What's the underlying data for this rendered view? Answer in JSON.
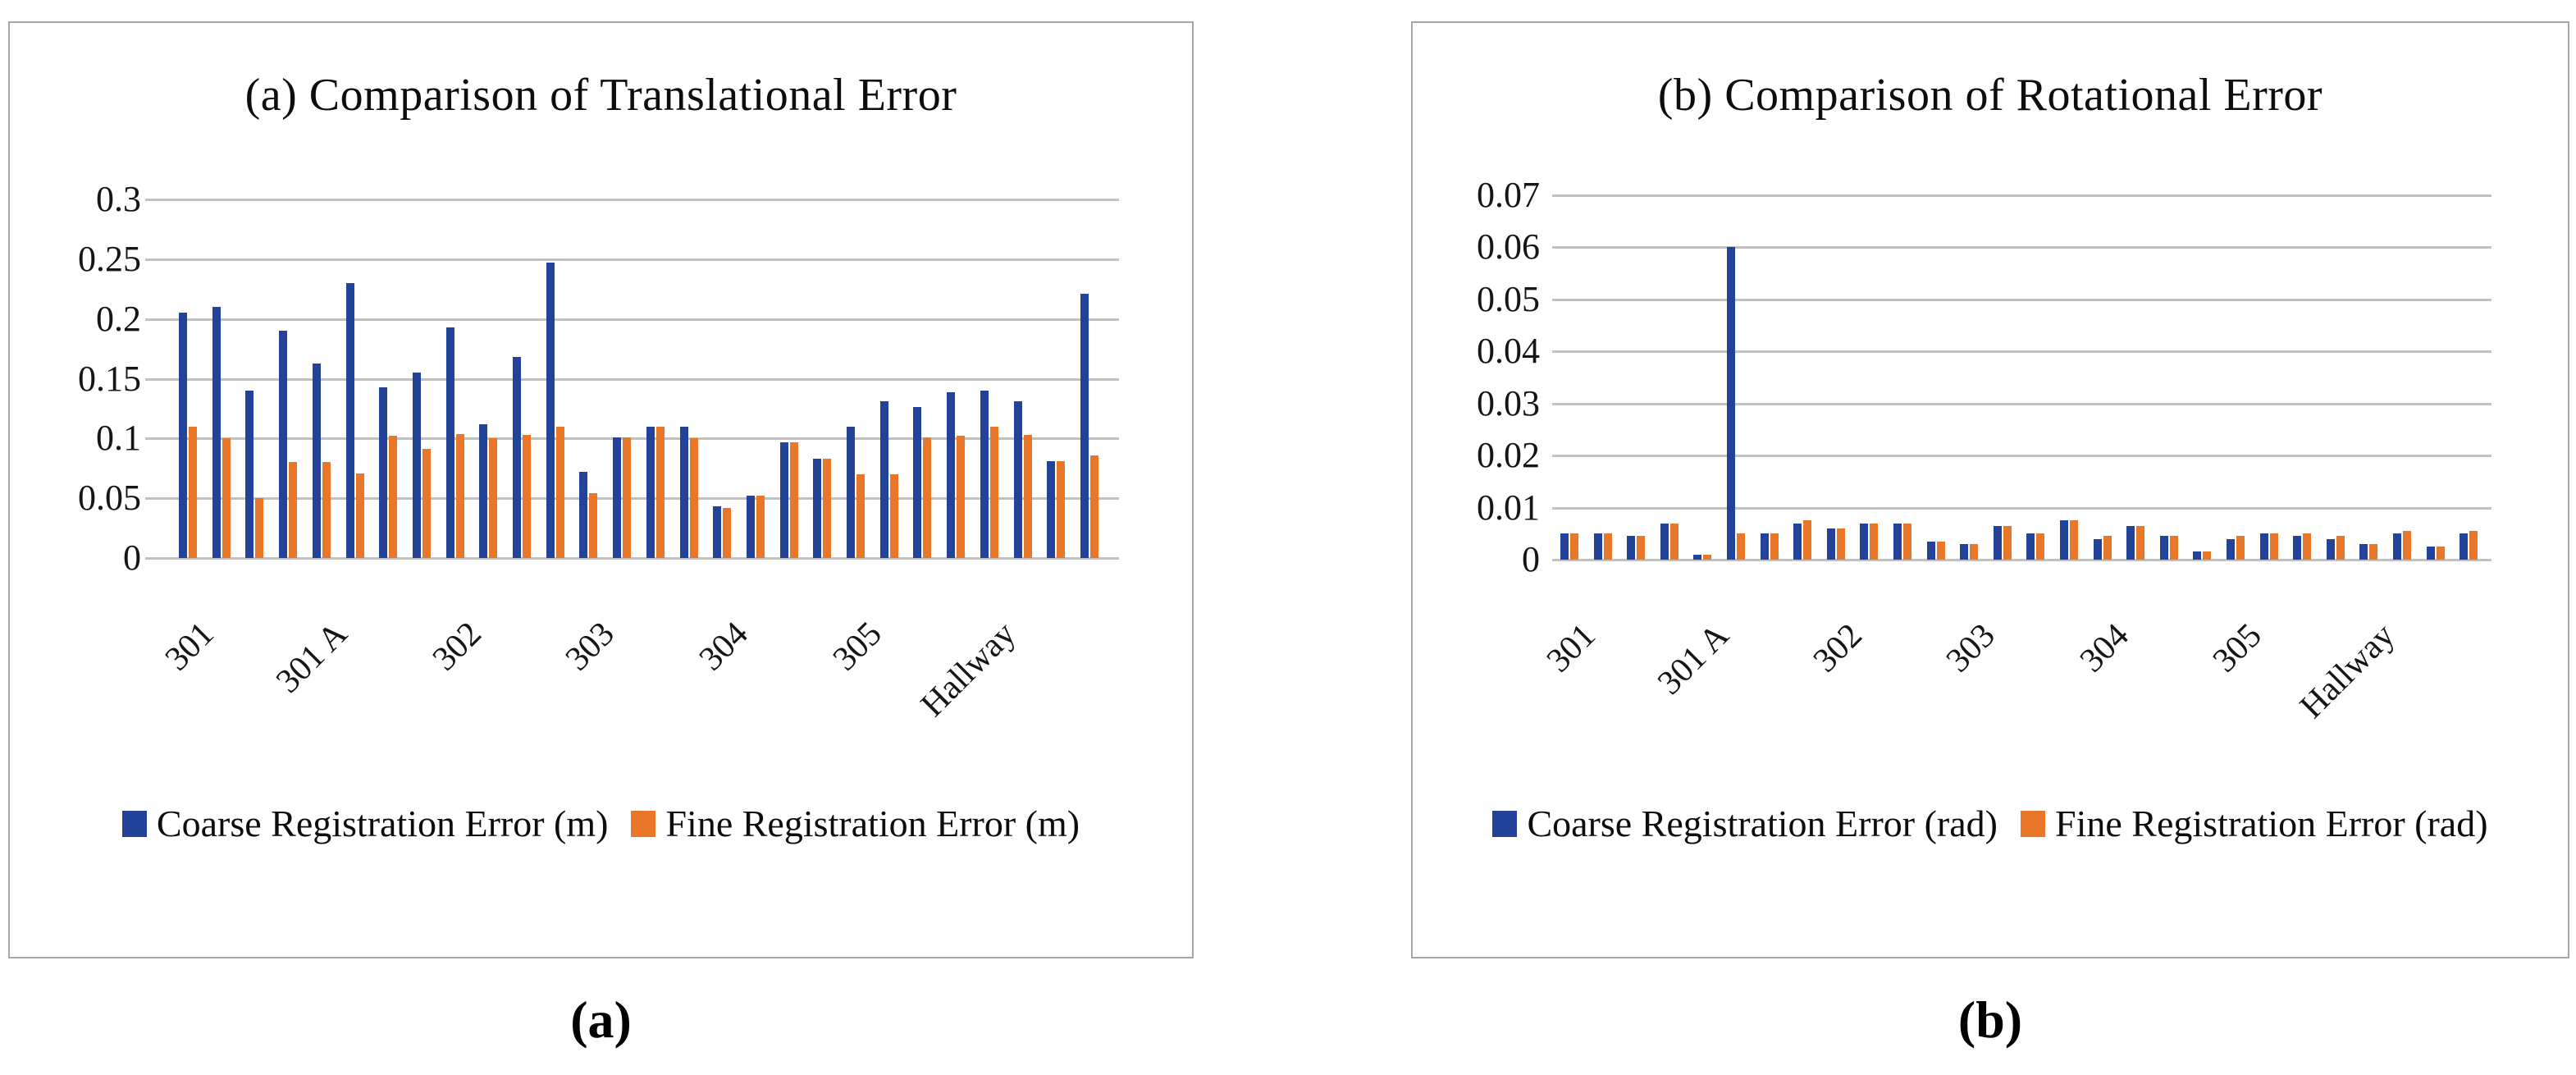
{
  "figure": {
    "captions": [
      "(a)",
      "(b)"
    ]
  },
  "colors": {
    "coarse_blue": "#23439B",
    "fine_orange": "#E8772A",
    "gridline": "#C1C1C1",
    "panel_border": "#A6A6A6",
    "text": "#111111"
  },
  "chart_data": [
    {
      "type": "bar",
      "title": "(a) Comparison of Translational Error",
      "categories": [
        "301",
        "301 A",
        "302",
        "303",
        "304",
        "305",
        "Hallway"
      ],
      "points_per_category": 4,
      "grid": true,
      "legend_position": "bottom",
      "y_axis": {
        "min": 0,
        "max": 0.3,
        "step": 0.05,
        "tick_labels_top_to_bottom": [
          "0.3",
          "0.25",
          "0.2",
          "0.15",
          "0.1",
          "0.05",
          "0"
        ]
      },
      "series": [
        {
          "name": "Coarse Registration Error (m)",
          "color": "#23439B",
          "values": [
            0.205,
            0.21,
            0.14,
            0.19,
            0.163,
            0.23,
            0.143,
            0.155,
            0.193,
            0.112,
            0.168,
            0.247,
            0.072,
            0.101,
            0.11,
            0.11,
            0.043,
            0.052,
            0.097,
            0.083,
            0.11,
            0.131,
            0.126,
            0.139,
            0.14,
            0.131,
            0.081,
            0.221
          ]
        },
        {
          "name": "Fine Registration Error (m)",
          "color": "#E8772A",
          "values": [
            0.11,
            0.1,
            0.05,
            0.08,
            0.08,
            0.071,
            0.102,
            0.091,
            0.104,
            0.1,
            0.103,
            0.11,
            0.054,
            0.101,
            0.11,
            0.1,
            0.042,
            0.052,
            0.097,
            0.083,
            0.07,
            0.07,
            0.101,
            0.102,
            0.11,
            0.103,
            0.081,
            0.086
          ]
        }
      ]
    },
    {
      "type": "bar",
      "title": "(b) Comparison of Rotational Error",
      "categories": [
        "301",
        "301 A",
        "302",
        "303",
        "304",
        "305",
        "Hallway"
      ],
      "points_per_category": 4,
      "grid": true,
      "legend_position": "bottom",
      "y_axis": {
        "min": 0,
        "max": 0.07,
        "step": 0.01,
        "tick_labels_top_to_bottom": [
          "0.07",
          "0.06",
          "0.05",
          "0.04",
          "0.03",
          "0.02",
          "0.01",
          "0"
        ]
      },
      "series": [
        {
          "name": "Coarse Registration Error (rad)",
          "color": "#23439B",
          "values": [
            0.005,
            0.005,
            0.0045,
            0.007,
            0.001,
            0.06,
            0.005,
            0.007,
            0.006,
            0.007,
            0.007,
            0.0035,
            0.003,
            0.0065,
            0.005,
            0.0075,
            0.004,
            0.0065,
            0.0045,
            0.0015,
            0.004,
            0.005,
            0.0045,
            0.004,
            0.003,
            0.005,
            0.0025,
            0.005
          ]
        },
        {
          "name": "Fine Registration Error (rad)",
          "color": "#E8772A",
          "values": [
            0.005,
            0.005,
            0.0045,
            0.007,
            0.001,
            0.005,
            0.005,
            0.0075,
            0.006,
            0.007,
            0.007,
            0.0035,
            0.003,
            0.0065,
            0.005,
            0.0075,
            0.0045,
            0.0065,
            0.0045,
            0.0015,
            0.0045,
            0.005,
            0.005,
            0.0045,
            0.003,
            0.0055,
            0.0025,
            0.0055
          ]
        }
      ]
    }
  ]
}
